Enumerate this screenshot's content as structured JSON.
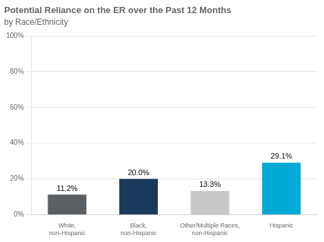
{
  "chart_data": {
    "type": "bar",
    "title": "Potential Reliance on the ER over the Past 12 Months",
    "subtitle": "by Race/Ethnicity",
    "categories": [
      "White,\nnon-Hispanic",
      "Black,\nnon-Hispanic",
      "Other/Multiple Races,\nnon-Hispanic",
      "Hispanic"
    ],
    "values": [
      11.2,
      20.0,
      13.3,
      29.1
    ],
    "value_labels": [
      "11.2%",
      "20.0%",
      "13.3%",
      "29.1%"
    ],
    "colors": [
      "#5a5f63",
      "#1a3a5c",
      "#c8c8c8",
      "#00a9d4"
    ],
    "data_labels": true,
    "ylim": [
      0,
      100
    ],
    "yticks": [
      {
        "value": 0,
        "label": "0%"
      },
      {
        "value": 20,
        "label": "20%"
      },
      {
        "value": 40,
        "label": "40%"
      },
      {
        "value": 60,
        "label": "60%"
      },
      {
        "value": 80,
        "label": "80%"
      },
      {
        "value": 100,
        "label": "100%"
      }
    ],
    "grid": true
  }
}
